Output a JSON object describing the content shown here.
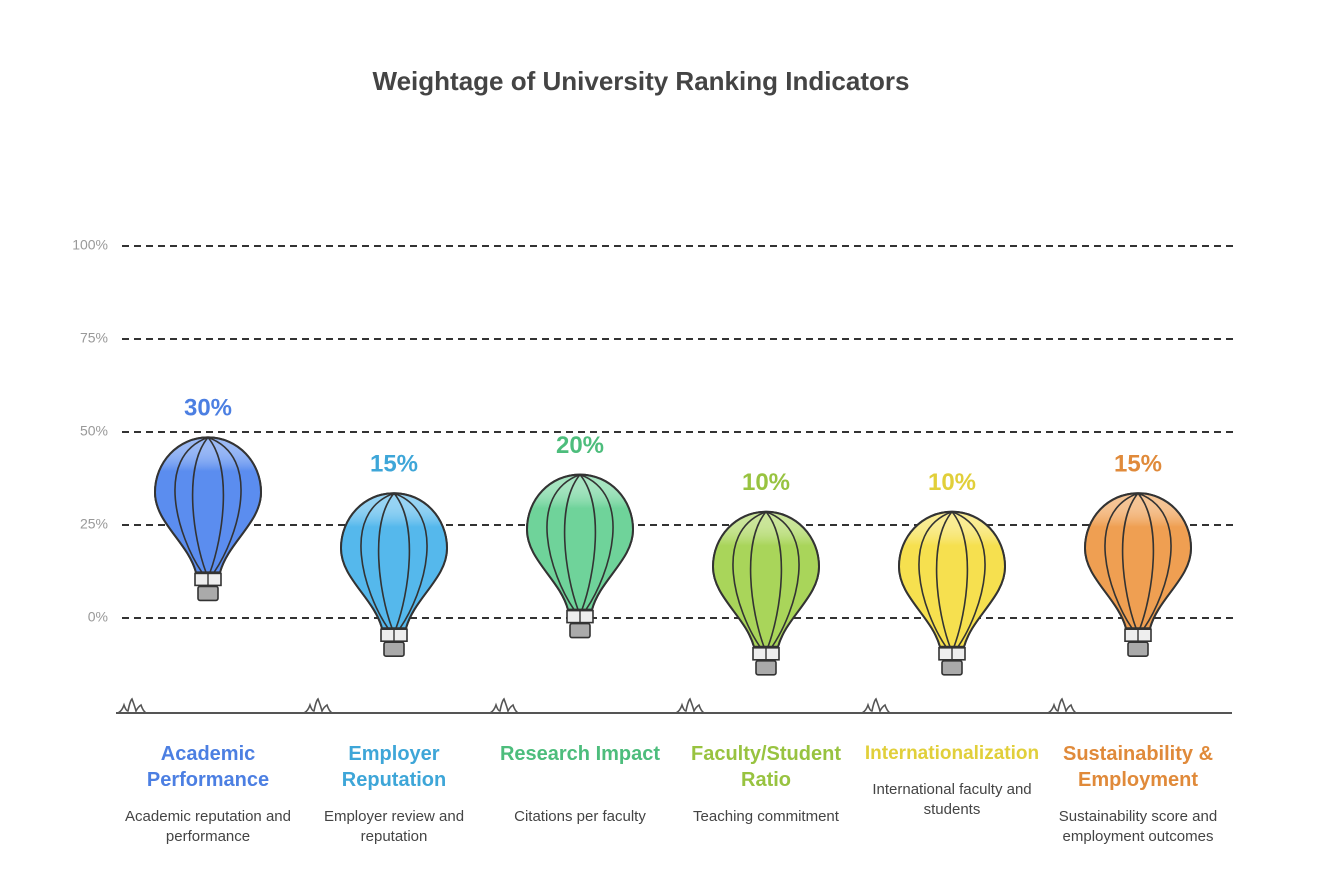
{
  "chart_data": {
    "type": "balloon",
    "title": "Weightage of University Ranking Indicators",
    "categories": [
      "Academic Performance",
      "Employer Reputation",
      "Research Impact",
      "Faculty/Student Ratio",
      "Internationalization",
      "Sustainability & Employment"
    ],
    "descriptions": [
      "Academic reputation and performance",
      "Employer review and reputation",
      "Citations per faculty",
      "Teaching commitment",
      "International faculty and students",
      "Sustainability score and employment outcomes"
    ],
    "values": [
      30,
      15,
      20,
      10,
      10,
      15
    ],
    "value_labels": [
      "30%",
      "15%",
      "20%",
      "10%",
      "10%",
      "15%"
    ],
    "colors": [
      "#5b8def",
      "#55b8ec",
      "#6fd39a",
      "#a9d55a",
      "#f6e04f",
      "#ef9f52"
    ],
    "label_colors": [
      "#4c7fe2",
      "#3ea6d8",
      "#4dbd7c",
      "#98c340",
      "#e1cf3a",
      "#e08a3a"
    ],
    "ylim": [
      0,
      100
    ],
    "yticks": [
      {
        "value": 0,
        "label": "0%"
      },
      {
        "value": 25,
        "label": "25%"
      },
      {
        "value": 50,
        "label": "50%"
      },
      {
        "value": 75,
        "label": "75%"
      },
      {
        "value": 100,
        "label": "100%"
      }
    ],
    "grid": true
  }
}
